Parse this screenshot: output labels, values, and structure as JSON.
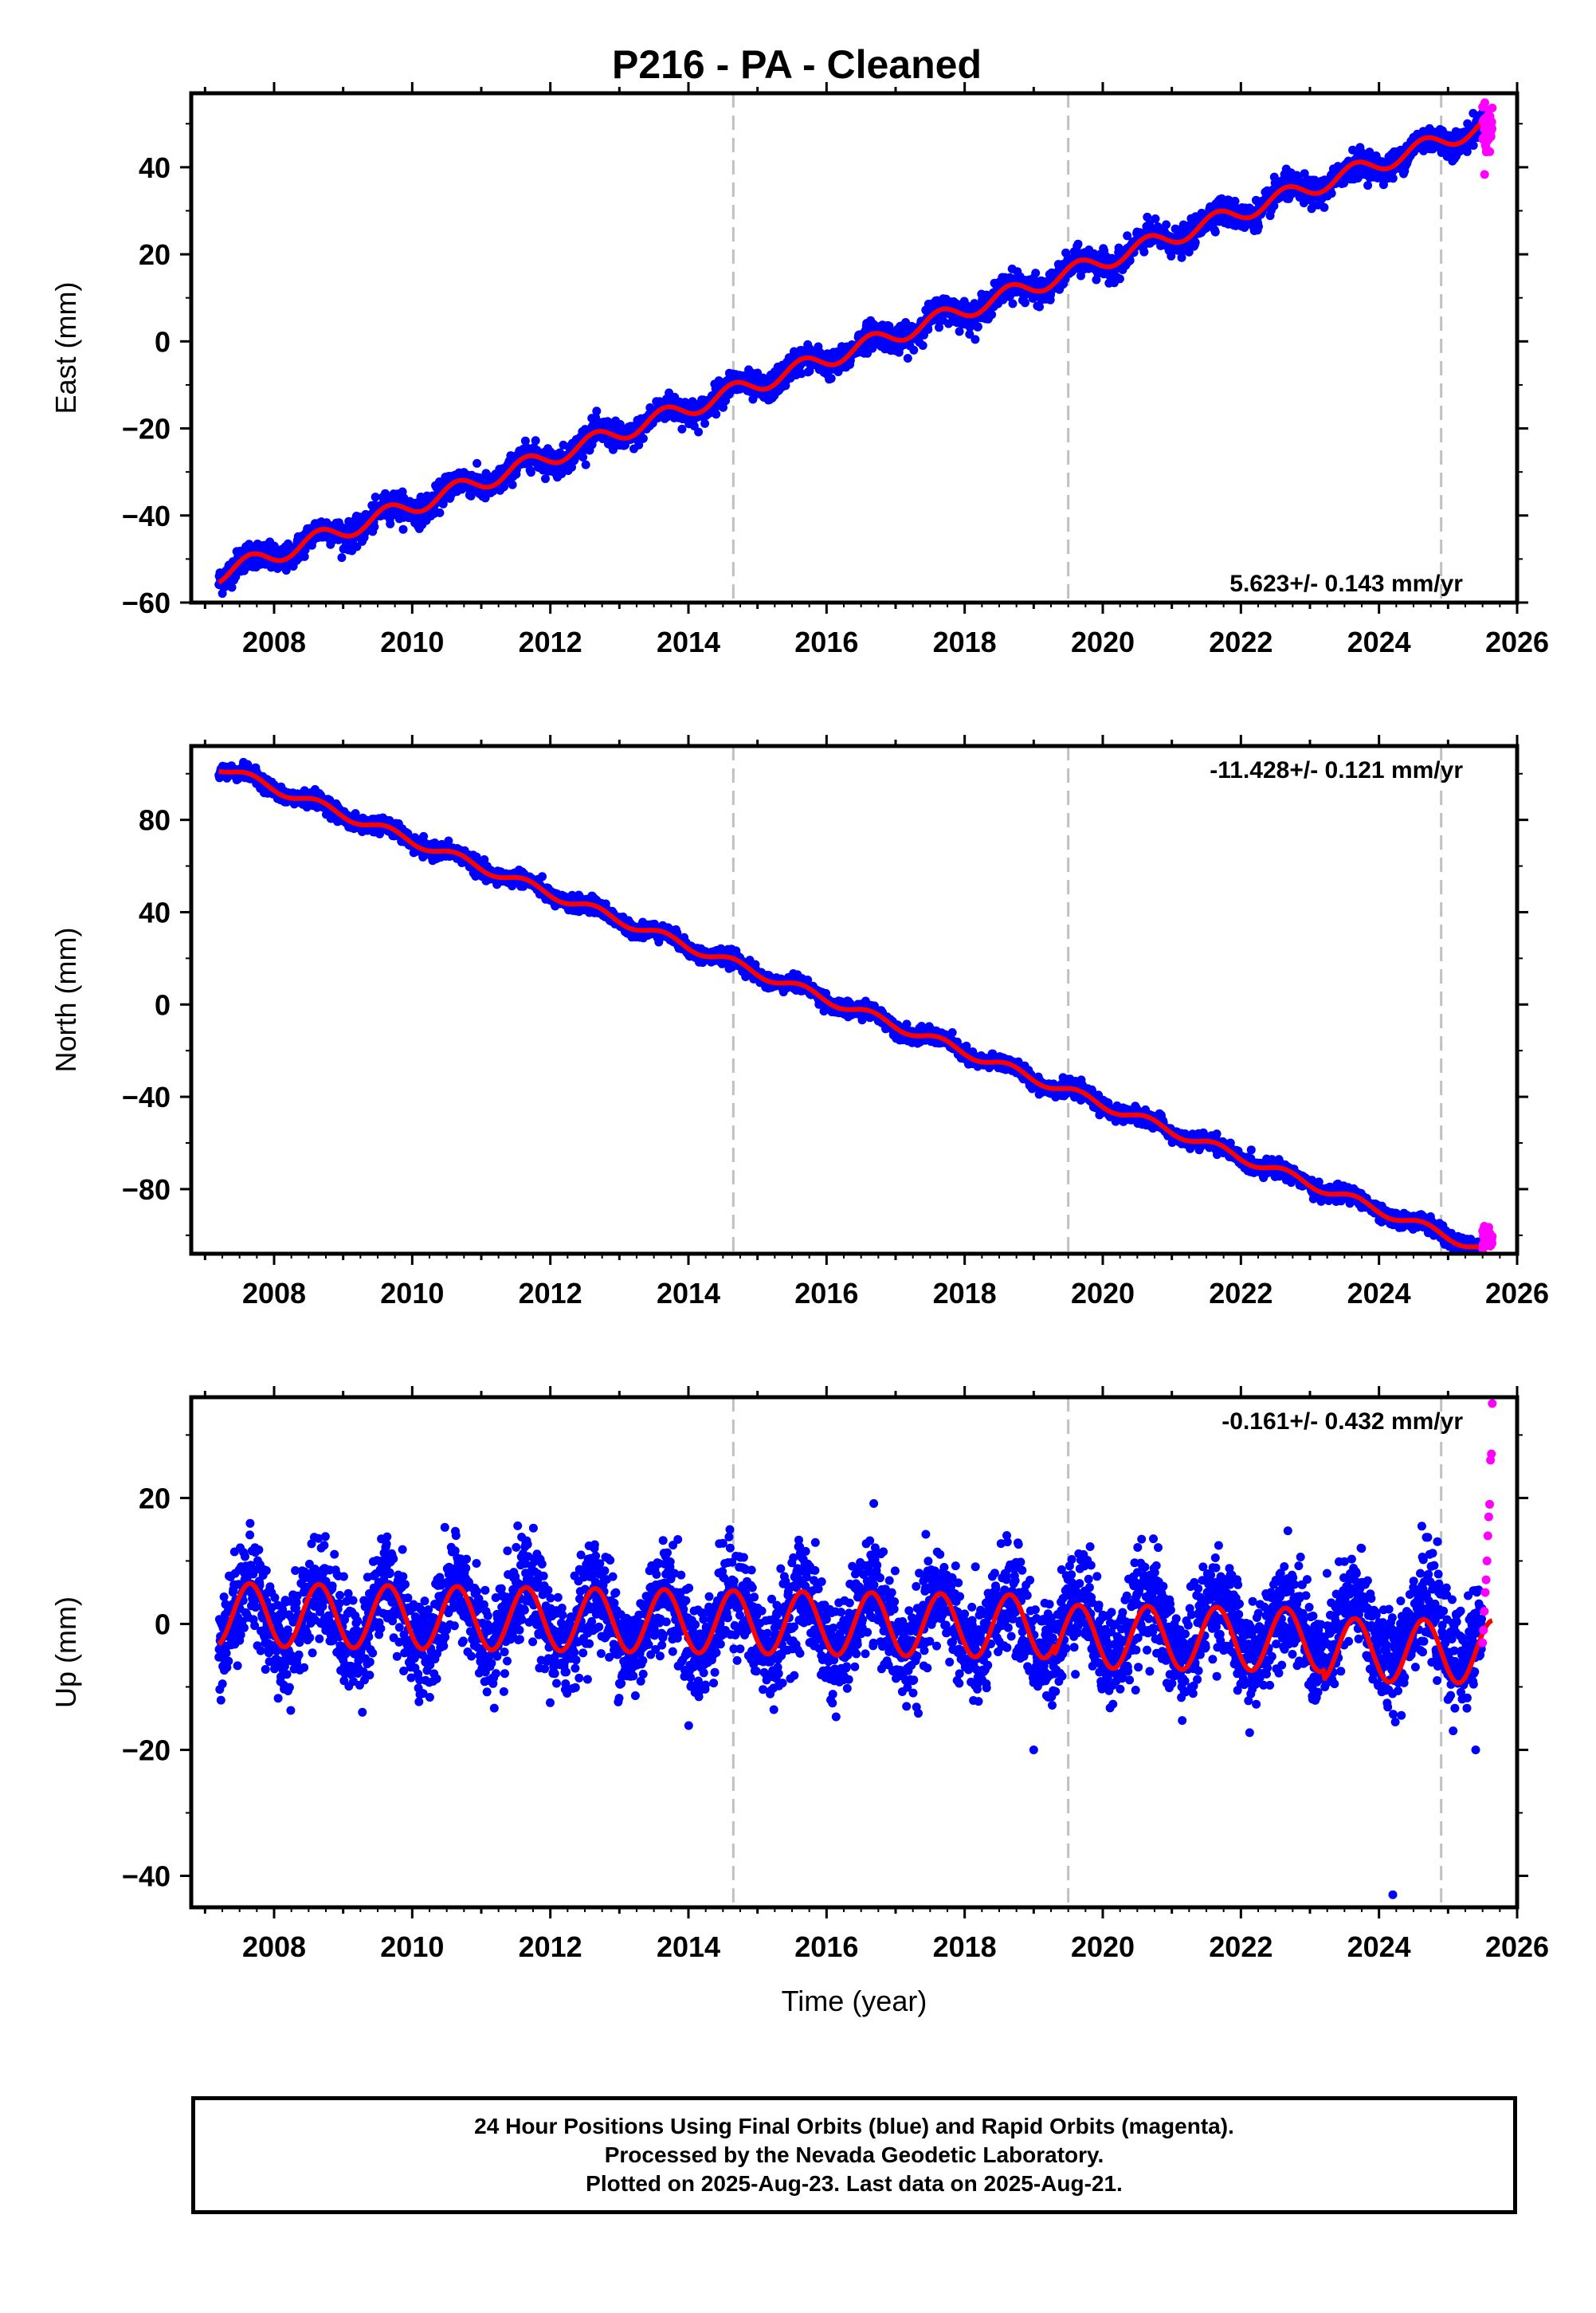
{
  "figure": {
    "title": "P216  - PA - Cleaned"
  },
  "colors": {
    "final_orbits": "#0000ff",
    "rapid_orbits": "#ff00ff",
    "model": "#ff0000",
    "event_lines": "#c0c0c0"
  },
  "chart_data": [
    {
      "type": "scatter",
      "component": "East",
      "ylabel": "East (mm)",
      "xlabel": "",
      "xlim": [
        2006.8,
        2026.0
      ],
      "ylim": [
        -60,
        57
      ],
      "yticks": [
        -60,
        -40,
        -20,
        0,
        20,
        40
      ],
      "xticks": [
        2008,
        2010,
        2012,
        2014,
        2016,
        2018,
        2020,
        2022,
        2024,
        2026
      ],
      "rate_label": "5.623+/- 0.143 mm/yr",
      "event_lines": [
        2014.65,
        2019.5,
        2024.9
      ],
      "series": [
        {
          "name": "Final Orbits (blue)",
          "x_start": 2007.2,
          "x_end": 2025.5,
          "trend": {
            "slope": 5.623,
            "value_at_start": -53.5
          },
          "seasonal_amplitude": 2.0,
          "scatter": 1.5
        },
        {
          "name": "Rapid Orbits (magenta)",
          "x_start": 2025.5,
          "x_end": 2025.64,
          "trend": {
            "slope": 0,
            "value_at_start": 48.5
          },
          "scatter": 3.0
        },
        {
          "name": "model",
          "x_start": 2007.2,
          "x_end": 2025.64,
          "trend": {
            "slope": 5.623,
            "value_at_start": -53.5
          },
          "seasonal_amplitude": 2.0,
          "offsets": [
            {
              "x": 2014.65,
              "dy": 0.0
            },
            {
              "x": 2019.5,
              "dy": 0.0
            },
            {
              "x": 2024.9,
              "dy": 0.0
            }
          ]
        }
      ]
    },
    {
      "type": "scatter",
      "component": "North",
      "ylabel": "North (mm)",
      "xlabel": "",
      "xlim": [
        2006.8,
        2026.0
      ],
      "ylim": [
        -108,
        112
      ],
      "yticks": [
        -80,
        -40,
        0,
        40,
        80
      ],
      "xticks": [
        2008,
        2010,
        2012,
        2014,
        2016,
        2018,
        2020,
        2022,
        2024,
        2026
      ],
      "rate_label": "-11.428+/- 0.121 mm/yr",
      "event_lines": [
        2014.65,
        2019.5,
        2024.9
      ],
      "series": [
        {
          "name": "Final Orbits (blue)",
          "x_start": 2007.2,
          "x_end": 2025.5,
          "trend": {
            "slope": -11.428,
            "value_at_start": 103.0
          },
          "seasonal_amplitude": 2.0,
          "scatter": 1.6
        },
        {
          "name": "Rapid Orbits (magenta)",
          "x_start": 2025.5,
          "x_end": 2025.64,
          "trend": {
            "slope": 0,
            "value_at_start": -101.0
          },
          "scatter": 2.5
        },
        {
          "name": "model",
          "x_start": 2007.2,
          "x_end": 2025.64,
          "trend": {
            "slope": -11.428,
            "value_at_start": 103.0
          },
          "seasonal_amplitude": 2.0
        }
      ]
    },
    {
      "type": "scatter",
      "component": "Up",
      "ylabel": "Up (mm)",
      "xlabel": "Time (year)",
      "xlim": [
        2006.8,
        2026.0
      ],
      "ylim": [
        -45,
        36
      ],
      "yticks": [
        -40,
        -20,
        0,
        20
      ],
      "xticks": [
        2008,
        2010,
        2012,
        2014,
        2016,
        2018,
        2020,
        2022,
        2024,
        2026
      ],
      "rate_label": "-0.161+/- 0.432 mm/yr",
      "event_lines": [
        2014.65,
        2019.5,
        2024.9
      ],
      "series": [
        {
          "name": "Final Orbits (blue)",
          "x_start": 2007.2,
          "x_end": 2025.5,
          "trend": {
            "slope": -0.161,
            "value_at_start": 1.5
          },
          "seasonal_amplitude": 5.0,
          "scatter": 4.0
        },
        {
          "name": "Rapid Orbits (magenta)",
          "x_start": 2025.5,
          "x_end": 2025.64,
          "values": [
            -3,
            -1,
            2,
            5,
            7,
            10,
            14,
            17,
            19,
            26,
            27,
            35
          ]
        },
        {
          "name": "model",
          "x_start": 2007.2,
          "x_end": 2025.64,
          "trend": {
            "slope": -0.161,
            "value_at_start": 1.5
          },
          "seasonal_amplitude": 5.0,
          "offsets": [
            {
              "x": 2019.3,
              "dy": -1.5
            },
            {
              "x": 2023.2,
              "dy": -1.5
            }
          ]
        }
      ]
    }
  ],
  "caption": {
    "line1": "24 Hour Positions Using Final Orbits (blue) and Rapid Orbits (magenta).",
    "line2": "Processed by the Nevada Geodetic Laboratory.",
    "line3": "Plotted on 2025-Aug-23. Last data on 2025-Aug-21."
  }
}
